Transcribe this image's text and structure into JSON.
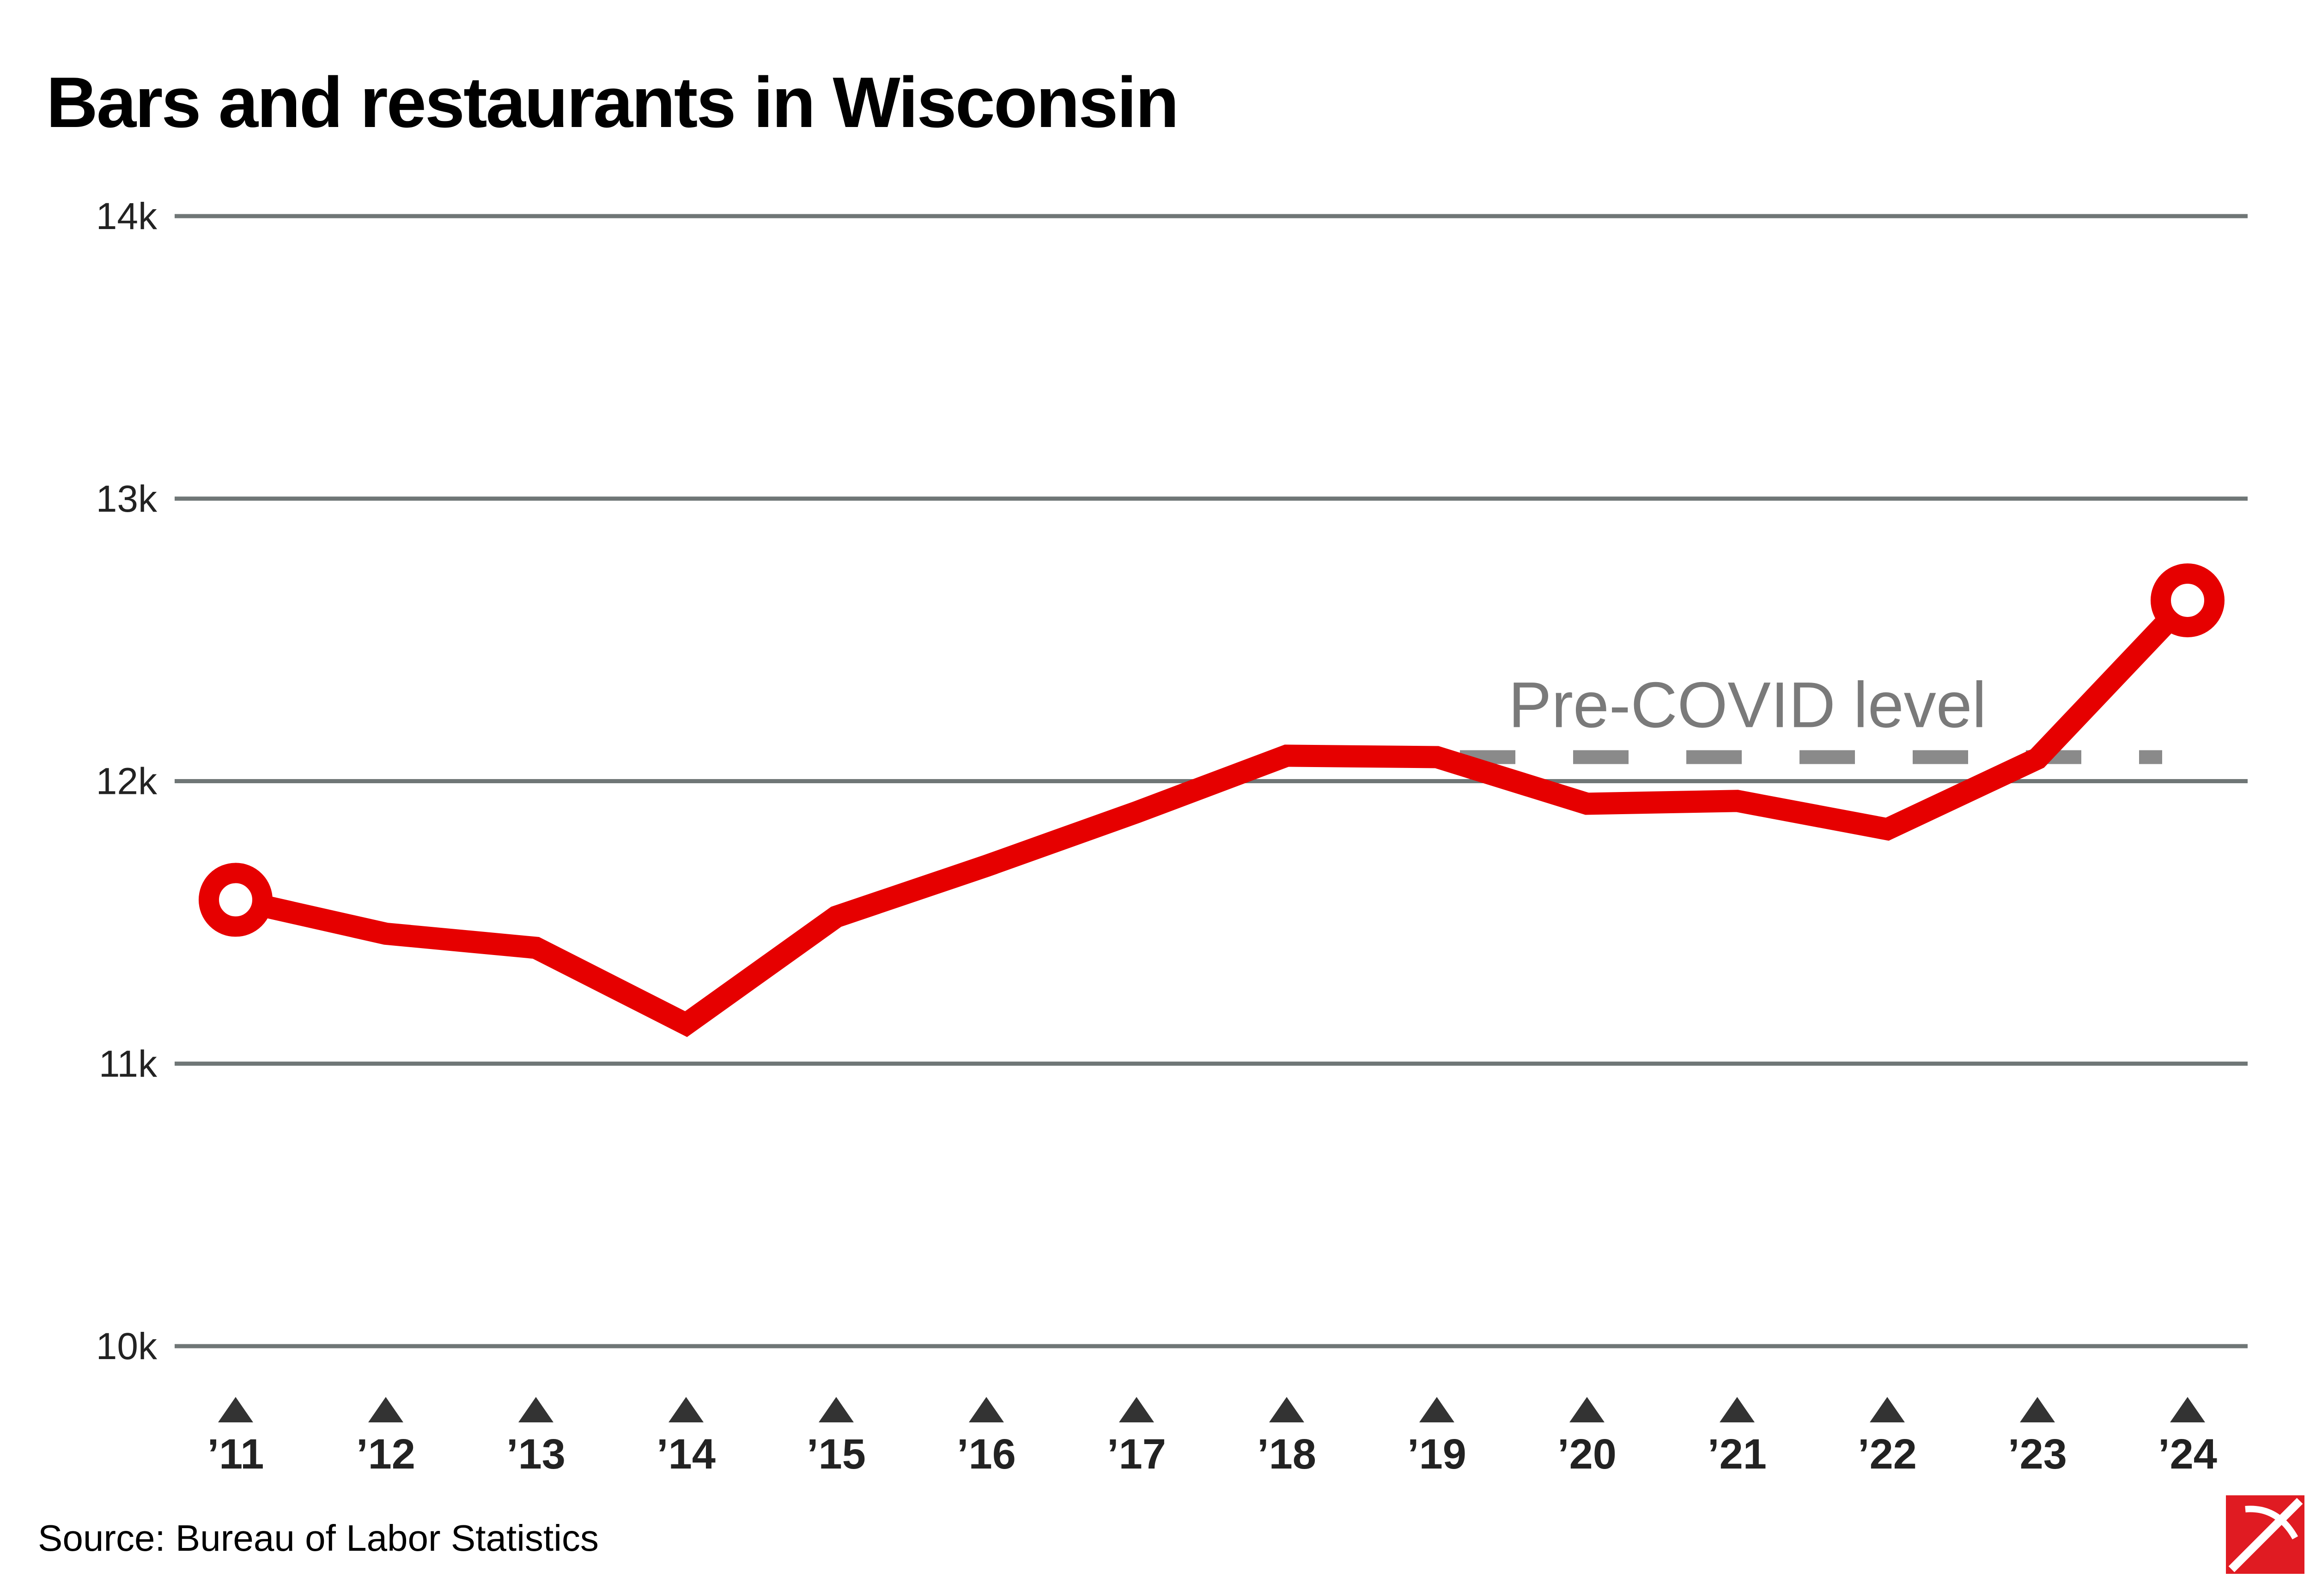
{
  "title": "Bars and restaurants in Wisconsin",
  "source": "Source: Bureau of Labor Statistics",
  "colors": {
    "line": "#e60000",
    "grid": "#6f7676",
    "reference": "#8a8a8a",
    "text": "#222222",
    "logo_red": "#e01b22"
  },
  "chart_data": {
    "type": "line",
    "title": "Bars and restaurants in Wisconsin",
    "xlabel": "",
    "ylabel": "",
    "categories": [
      "’11",
      "’12",
      "’13",
      "’14",
      "’15",
      "’16",
      "’17",
      "’18",
      "’19",
      "’20",
      "’21",
      "’22",
      "’23",
      "’24"
    ],
    "series": [
      {
        "values": [
          11580,
          11460,
          11410,
          11140,
          11520,
          11700,
          11890,
          12090,
          12085,
          11920,
          11930,
          11830,
          12080,
          12640
        ]
      }
    ],
    "ylim": [
      10000,
      14000
    ],
    "yticks": [
      10000,
      11000,
      12000,
      13000,
      14000
    ],
    "ytick_labels": [
      "10k",
      "11k",
      "12k",
      "13k",
      "14k"
    ],
    "grid": true,
    "reference_line": {
      "label": "Pre-COVID level",
      "value": 12085,
      "style": "dashed"
    },
    "endpoint_markers": true,
    "legend": "none"
  },
  "logo_icon": "pickaxe-logo-icon"
}
